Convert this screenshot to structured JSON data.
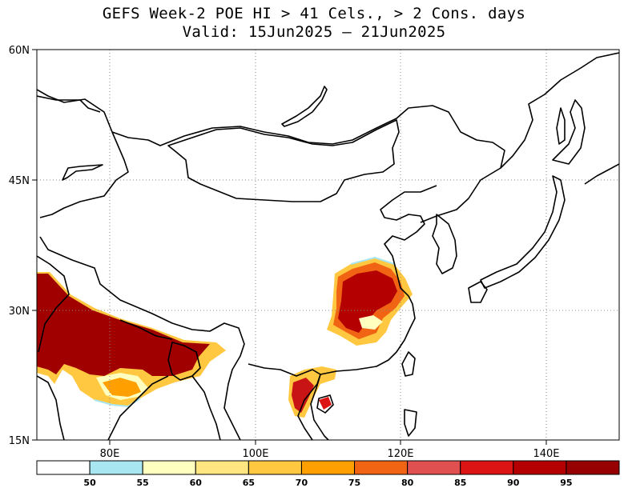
{
  "title": {
    "line1": "GEFS Week-2 POE HI > 41 Cels., > 2 Cons. days",
    "line2": "Valid: 15Jun2025 — 21Jun2025"
  },
  "axes": {
    "lat_ticks": [
      "60N",
      "45N",
      "30N",
      "15N"
    ],
    "lon_ticks": [
      "80E",
      "100E",
      "120E",
      "140E"
    ],
    "lon_range": [
      70,
      150
    ],
    "lat_range": [
      15,
      60
    ],
    "grid": "dotted"
  },
  "colorbar": {
    "ticks": [
      "50",
      "55",
      "60",
      "65",
      "70",
      "75",
      "80",
      "85",
      "90",
      "95"
    ],
    "colors": [
      "#ffffff",
      "#a8e6f2",
      "#ffffc0",
      "#ffe680",
      "#ffc840",
      "#ffa000",
      "#f06414",
      "#e05050",
      "#dc1414",
      "#b40000",
      "#960000"
    ]
  },
  "shading": {
    "india_color": "#a00000",
    "china_color": "#b40000",
    "china_edge": "#f06414",
    "fringe": "#ffc840",
    "light_fringe": "#ffffc0",
    "cyan_edge": "#a8e6f2"
  }
}
